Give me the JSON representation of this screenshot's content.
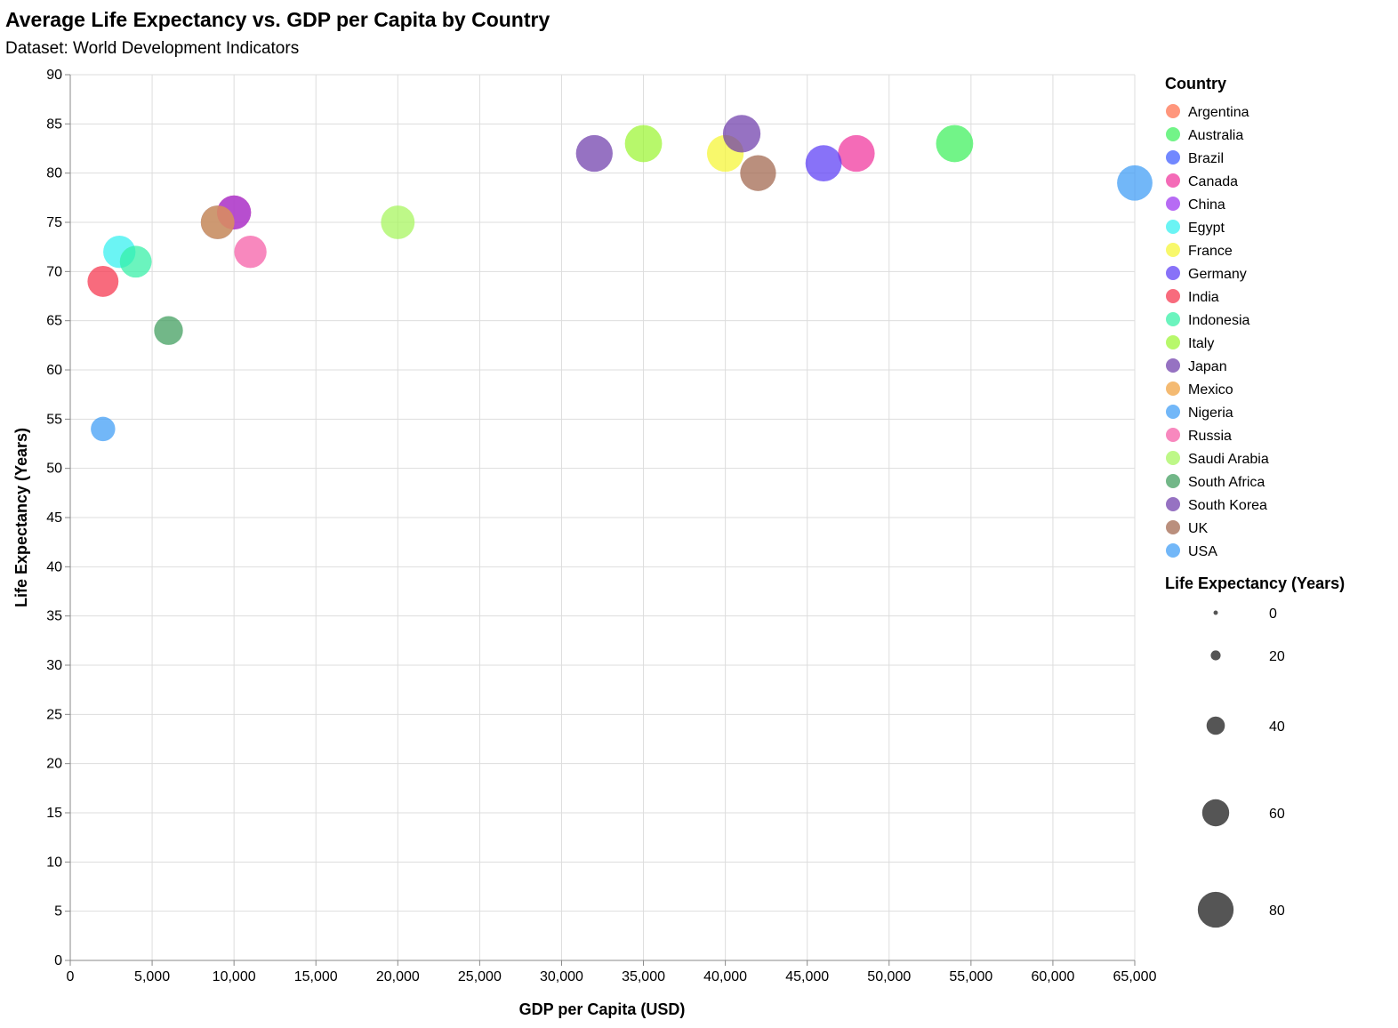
{
  "chart_data": {
    "type": "scatter",
    "title": "Average Life Expectancy vs. GDP per Capita by Country",
    "subtitle": "Dataset: World Development Indicators",
    "xlabel": "GDP per Capita (USD)",
    "ylabel": "Life Expectancy (Years)",
    "xlim": [
      0,
      65000
    ],
    "ylim": [
      0,
      90
    ],
    "x_ticks": [
      "0",
      "5,000",
      "10,000",
      "15,000",
      "20,000",
      "25,000",
      "30,000",
      "35,000",
      "40,000",
      "45,000",
      "50,000",
      "55,000",
      "60,000",
      "65,000"
    ],
    "y_ticks": [
      "0",
      "5",
      "10",
      "15",
      "20",
      "25",
      "30",
      "35",
      "40",
      "45",
      "50",
      "55",
      "60",
      "65",
      "70",
      "75",
      "80",
      "85",
      "90"
    ],
    "grid": true,
    "legend_position": "right",
    "color_legend_title": "Country",
    "size_legend_title": "Life Expectancy (Years)",
    "size_legend_values": [
      0,
      20,
      40,
      60,
      80
    ],
    "size_legend_labels": [
      "0",
      "20",
      "40",
      "60",
      "80"
    ],
    "points": [
      {
        "country": "Argentina",
        "x": 10000,
        "y": 76,
        "color": "#ff6e4a"
      },
      {
        "country": "Australia",
        "x": 54000,
        "y": 83,
        "color": "#3cf05a"
      },
      {
        "country": "Brazil",
        "x": 9000,
        "y": 75,
        "color": "#3c5aff"
      },
      {
        "country": "Canada",
        "x": 48000,
        "y": 82,
        "color": "#f0329b"
      },
      {
        "country": "China",
        "x": 10000,
        "y": 76,
        "color": "#9b32f0"
      },
      {
        "country": "Egypt",
        "x": 3000,
        "y": 72,
        "color": "#32f0f0"
      },
      {
        "country": "France",
        "x": 40000,
        "y": 82,
        "color": "#f5f532"
      },
      {
        "country": "Germany",
        "x": 46000,
        "y": 81,
        "color": "#5a3cf5"
      },
      {
        "country": "India",
        "x": 2000,
        "y": 69,
        "color": "#f5324b"
      },
      {
        "country": "Indonesia",
        "x": 4000,
        "y": 71,
        "color": "#32f0a5"
      },
      {
        "country": "Italy",
        "x": 35000,
        "y": 83,
        "color": "#9bf532"
      },
      {
        "country": "Japan",
        "x": 32000,
        "y": 82,
        "color": "#6e3caa"
      },
      {
        "country": "Mexico",
        "x": 9000,
        "y": 75,
        "color": "#f0a03c"
      },
      {
        "country": "Nigeria",
        "x": 2000,
        "y": 54,
        "color": "#3c9bf5"
      },
      {
        "country": "Russia",
        "x": 11000,
        "y": 72,
        "color": "#f55aa5"
      },
      {
        "country": "Saudi Arabia",
        "x": 20000,
        "y": 75,
        "color": "#a5f55a"
      },
      {
        "country": "South Africa",
        "x": 6000,
        "y": 64,
        "color": "#3c9b5a"
      },
      {
        "country": "South Korea",
        "x": 41000,
        "y": 84,
        "color": "#6e3caa"
      },
      {
        "country": "UK",
        "x": 42000,
        "y": 80,
        "color": "#a0644b"
      },
      {
        "country": "USA",
        "x": 65000,
        "y": 79,
        "color": "#3c9bf5"
      }
    ]
  }
}
